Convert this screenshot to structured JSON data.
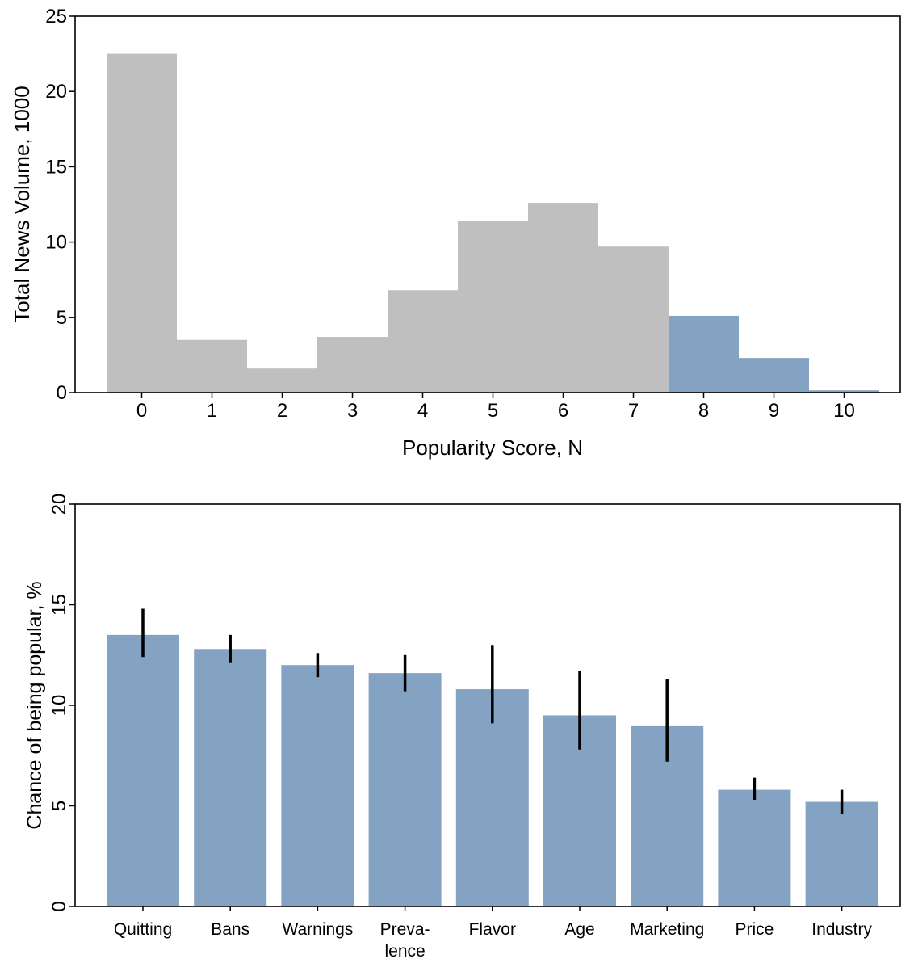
{
  "chart_data": [
    {
      "type": "bar",
      "xlabel": "Popularity Score, N",
      "ylabel": "Total News Volume, 1000",
      "ylim": [
        0,
        25
      ],
      "yticks": [
        "0",
        "5",
        "10",
        "15",
        "20",
        "25"
      ],
      "categories": [
        "0",
        "1",
        "2",
        "3",
        "4",
        "5",
        "6",
        "7",
        "8",
        "9",
        "10"
      ],
      "values": [
        22.5,
        3.5,
        1.6,
        3.7,
        6.8,
        11.4,
        12.6,
        9.7,
        5.1,
        2.3,
        0.15
      ],
      "highlight_from_index": 8,
      "colors": {
        "default": "#bfbfbf",
        "highlight": "#84a2c1"
      },
      "grid": false
    },
    {
      "type": "bar",
      "xlabel": "",
      "ylabel": "Chance of being popular, %",
      "ylim": [
        0,
        20
      ],
      "yticks": [
        "0",
        "5",
        "10",
        "15",
        "20"
      ],
      "categories": [
        "Quitting",
        "Bans",
        "Warnings",
        "Preva-\nlence",
        "Flavor",
        "Age",
        "Marketing",
        "Price",
        "Industry"
      ],
      "values": [
        13.5,
        12.8,
        12.0,
        11.6,
        10.8,
        9.5,
        9.0,
        5.8,
        5.2
      ],
      "error_low": [
        12.4,
        12.1,
        11.4,
        10.7,
        9.1,
        7.8,
        7.2,
        5.3,
        4.6
      ],
      "error_high": [
        14.8,
        13.5,
        12.6,
        12.5,
        13.0,
        11.7,
        11.3,
        6.4,
        5.8
      ],
      "colors": {
        "bar": "#84a2c1",
        "error": "#000000"
      },
      "grid": false
    }
  ]
}
